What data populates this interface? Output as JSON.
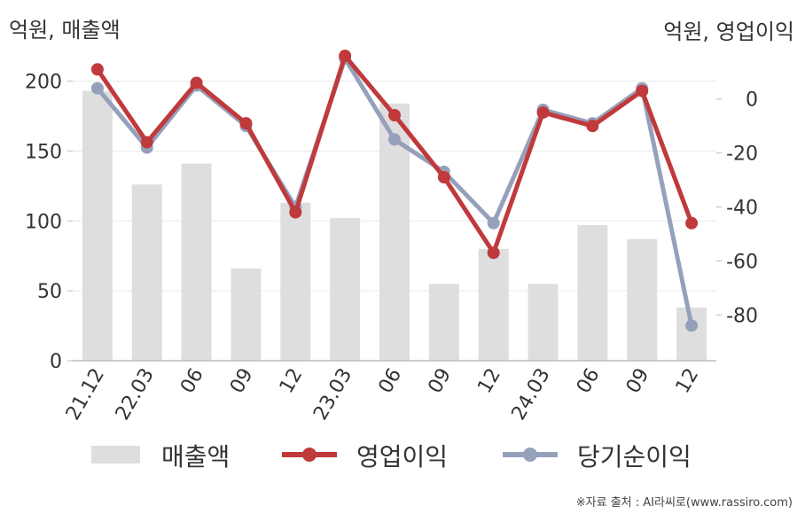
{
  "header": {
    "left_unit": "억원, 매출액",
    "right_unit": "억원, 영업이익"
  },
  "source": "※자료 출처 : AI라씨로(www.rassiro.com)",
  "colors": {
    "bar": "#dedede",
    "operating_profit": "#c0393b",
    "net_income": "#95a1bb",
    "axis": "#bbbbbb",
    "grid": "#e9e9e9",
    "text": "#333333"
  },
  "chart_data": {
    "type": "bar+line",
    "categories": [
      "21.12",
      "22.03",
      "06",
      "09",
      "12",
      "23.03",
      "06",
      "09",
      "12",
      "24.03",
      "06",
      "09",
      "12"
    ],
    "y_left": {
      "label": "억원, 매출액",
      "ylim": [
        0,
        220
      ],
      "ticks": [
        0,
        50,
        100,
        150,
        200
      ]
    },
    "y_right": {
      "label": "억원, 영업이익",
      "ylim": [
        -97,
        17
      ],
      "ticks": [
        0,
        -20,
        -40,
        -60,
        -80
      ]
    },
    "grid": true,
    "legend_position": "bottom",
    "series": [
      {
        "name": "매출액",
        "type": "bar",
        "axis": "left",
        "values": [
          193,
          126,
          141,
          66,
          113,
          102,
          184,
          55,
          80,
          55,
          97,
          87,
          38
        ]
      },
      {
        "name": "영업이익",
        "type": "line",
        "axis": "right",
        "values": [
          11,
          -16,
          6,
          -9,
          -42,
          16,
          -6,
          -29,
          -57,
          -5,
          -10,
          3,
          -46
        ]
      },
      {
        "name": "당기순이익",
        "type": "line",
        "axis": "right",
        "values": [
          4,
          -18,
          5,
          -10,
          -40,
          15,
          -15,
          -27,
          -46,
          -4,
          -9,
          4,
          -84
        ]
      }
    ]
  }
}
